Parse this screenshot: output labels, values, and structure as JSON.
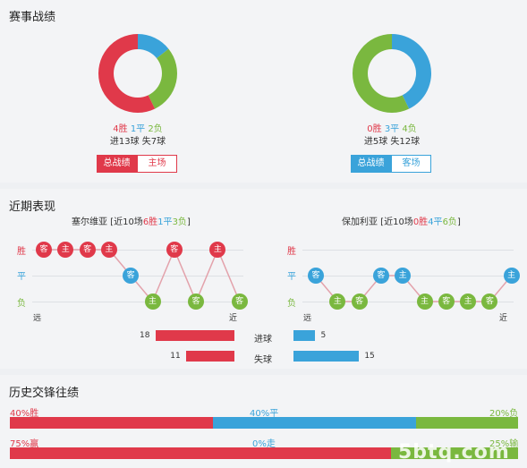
{
  "section1": {
    "title": "赛事战绩",
    "left": {
      "win": "4胜",
      "draw": "1平",
      "loss": "2负",
      "goals": "进13球 失7球",
      "btn_total": "总战绩",
      "btn_venue": "主场",
      "shares": {
        "win": 4,
        "draw": 1,
        "loss": 2
      }
    },
    "right": {
      "win": "0胜",
      "draw": "3平",
      "loss": "4负",
      "goals": "进5球 失12球",
      "btn_total": "总战绩",
      "btn_venue": "客场",
      "shares": {
        "win": 0,
        "draw": 3,
        "loss": 4
      }
    }
  },
  "section2": {
    "title": "近期表现",
    "left": {
      "team": "塞尔维亚",
      "pre": " [近10场",
      "win": "6胜",
      "draw": "1平",
      "loss": "3负",
      "post": "]",
      "results": [
        {
          "r": "w",
          "v": "客"
        },
        {
          "r": "w",
          "v": "主"
        },
        {
          "r": "w",
          "v": "客"
        },
        {
          "r": "w",
          "v": "主"
        },
        {
          "r": "d",
          "v": "客"
        },
        {
          "r": "l",
          "v": "主"
        },
        {
          "r": "w",
          "v": "客"
        },
        {
          "r": "l",
          "v": "客"
        },
        {
          "r": "w",
          "v": "主"
        },
        {
          "r": "l",
          "v": "客"
        }
      ]
    },
    "right": {
      "team": "保加利亚",
      "pre": " [近10场",
      "win": "0胜",
      "draw": "4平",
      "loss": "6负",
      "post": "]",
      "results": [
        {
          "r": "d",
          "v": "客"
        },
        {
          "r": "l",
          "v": "主"
        },
        {
          "r": "l",
          "v": "客"
        },
        {
          "r": "d",
          "v": "客"
        },
        {
          "r": "d",
          "v": "主"
        },
        {
          "r": "l",
          "v": "主"
        },
        {
          "r": "l",
          "v": "客"
        },
        {
          "r": "l",
          "v": "主"
        },
        {
          "r": "l",
          "v": "客"
        },
        {
          "r": "d",
          "v": "主"
        }
      ]
    },
    "ylabels": {
      "win": "胜",
      "draw": "平",
      "loss": "负"
    },
    "far": "远",
    "near": "近",
    "stats": [
      {
        "label": "进球",
        "left": 18,
        "right": 5
      },
      {
        "label": "失球",
        "left": 11,
        "right": 15
      }
    ]
  },
  "section3": {
    "title": "历史交锋往绩",
    "row1": {
      "left": "40%胜",
      "mid": "40%平",
      "right": "20%负",
      "a": 40,
      "b": 40,
      "c": 20
    },
    "row2": {
      "left": "75%赢",
      "mid": "0%走",
      "right": "25%输",
      "a": 75,
      "b": 0,
      "c": 25
    }
  },
  "watermark": "5btq.com",
  "colors": {
    "win": "#e0394a",
    "draw": "#3aa3da",
    "loss": "#7ab83f"
  }
}
